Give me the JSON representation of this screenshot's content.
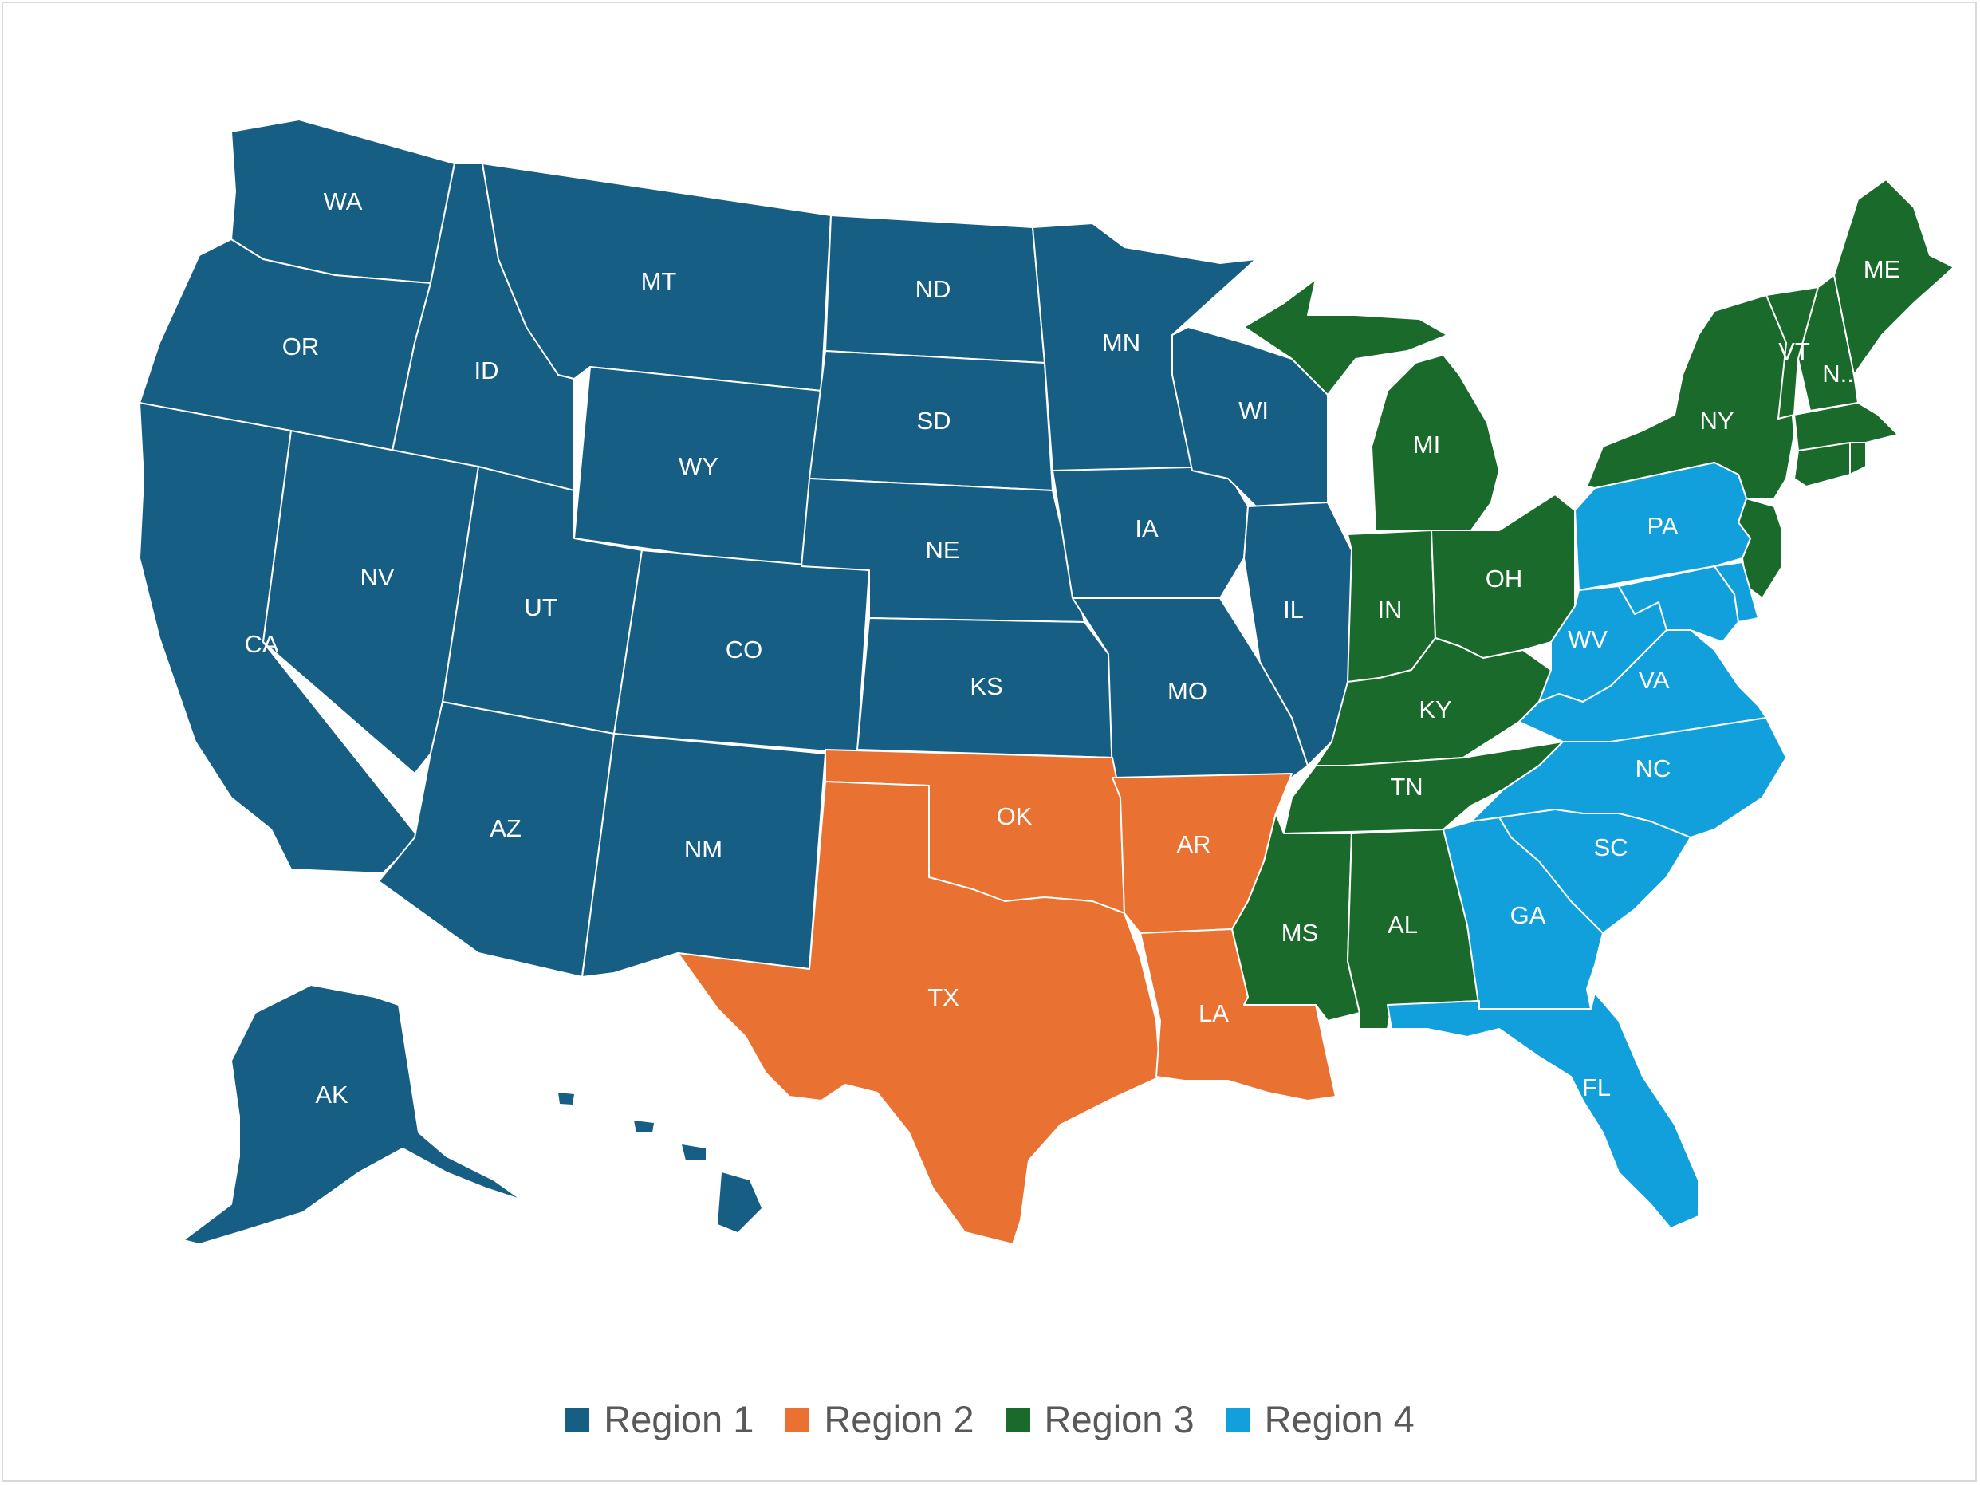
{
  "legend": [
    {
      "label": "Region 1",
      "color": "#175e84"
    },
    {
      "label": "Region 2",
      "color": "#e97132"
    },
    {
      "label": "Region 3",
      "color": "#1a6b2b"
    },
    {
      "label": "Region 4",
      "color": "#12a0dc"
    }
  ],
  "states": {
    "WA": "WA",
    "OR": "OR",
    "CA": "CA",
    "ID": "ID",
    "NV": "NV",
    "MT": "MT",
    "WY": "WY",
    "UT": "UT",
    "AZ": "AZ",
    "CO": "CO",
    "NM": "NM",
    "ND": "ND",
    "SD": "SD",
    "NE": "NE",
    "KS": "KS",
    "MN": "MN",
    "IA": "IA",
    "MO": "MO",
    "WI": "WI",
    "IL": "IL",
    "AK": "AK",
    "OK": "OK",
    "TX": "TX",
    "AR": "AR",
    "LA": "LA",
    "MI": "MI",
    "IN": "IN",
    "OH": "OH",
    "KY": "KY",
    "TN": "TN",
    "MS": "MS",
    "AL": "AL",
    "NY": "NY",
    "VT": "VT",
    "NH": "N..",
    "ME": "ME",
    "PA": "PA",
    "WV": "WV",
    "VA": "VA",
    "NC": "NC",
    "SC": "SC",
    "GA": "GA",
    "FL": "FL"
  }
}
